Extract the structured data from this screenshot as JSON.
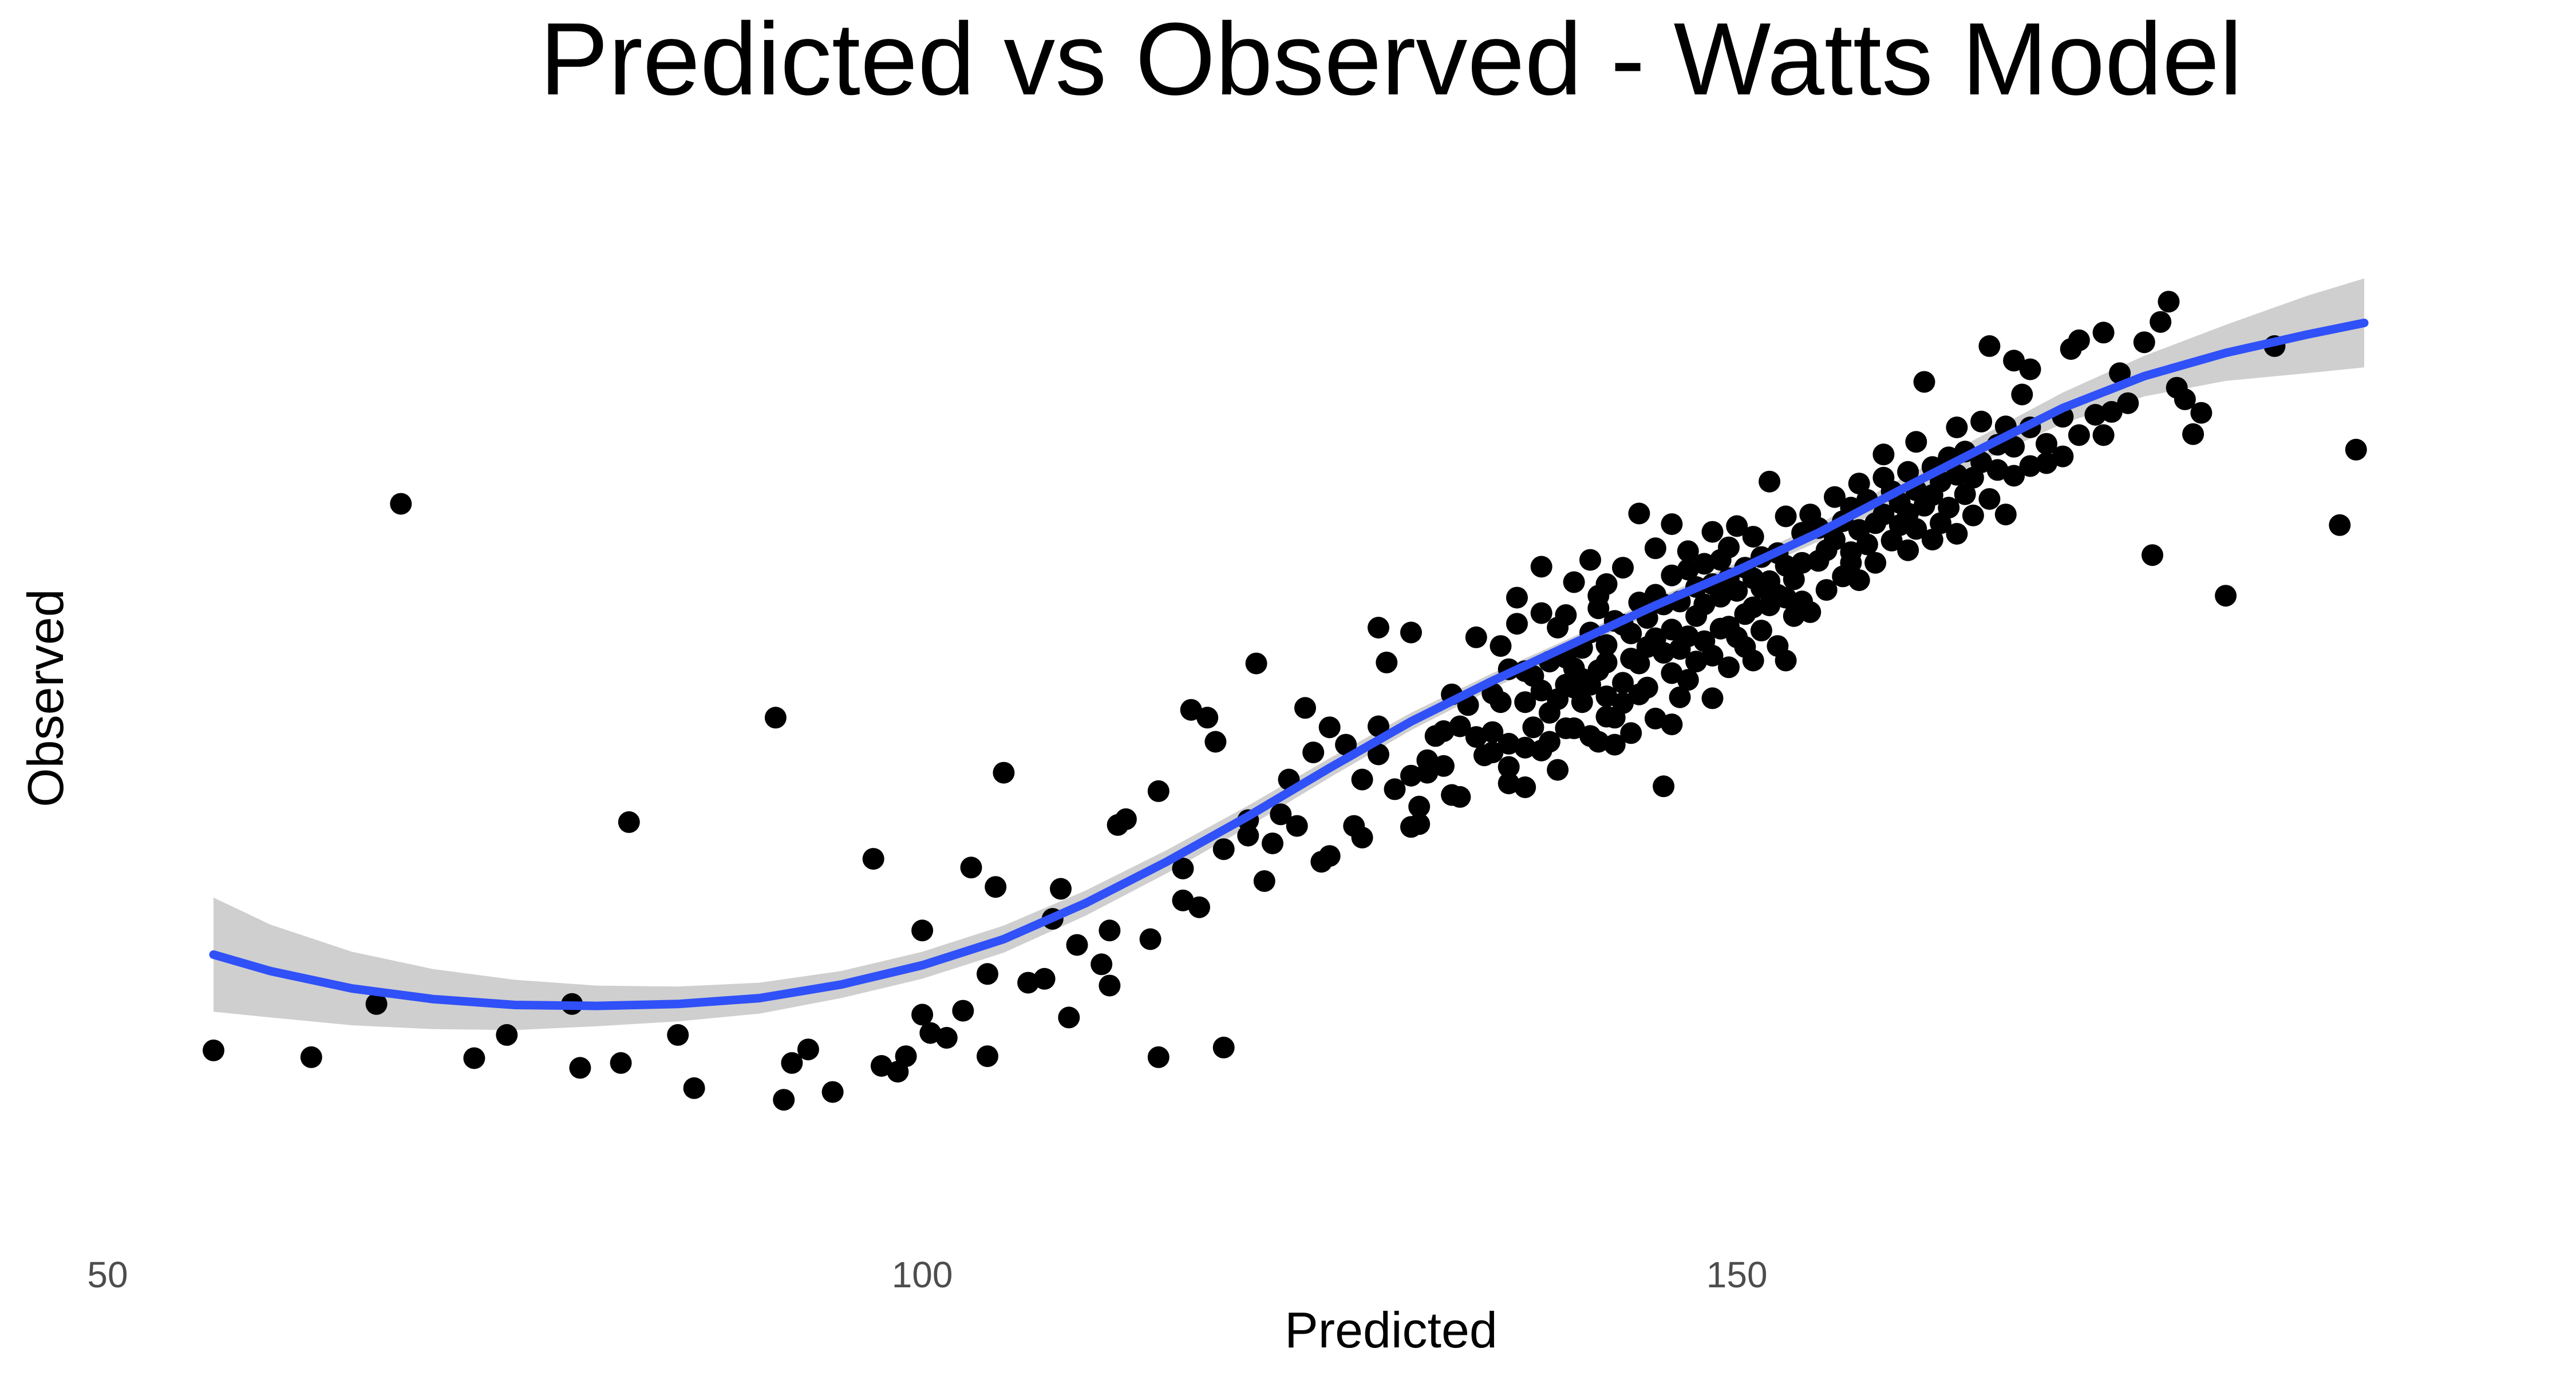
{
  "chart_data": {
    "type": "scatter",
    "title": "Predicted vs Observed - Watts Model",
    "xlabel": "Predicted",
    "ylabel": "Observed",
    "xlim": [
      50,
      195
    ],
    "ylim": [
      -10,
      100
    ],
    "x_ticks": [
      50,
      100,
      150
    ],
    "y_ticks": [],
    "grid": false,
    "legend": "none",
    "colors": {
      "points": "#000000",
      "smooth_line": "#3050f8",
      "confidence_band": "#cccccc"
    },
    "points": [
      [
        56.5,
        6.8
      ],
      [
        62.5,
        6.1
      ],
      [
        68,
        63.3
      ],
      [
        66.5,
        11.6
      ],
      [
        72.5,
        6.0
      ],
      [
        74.5,
        8.4
      ],
      [
        78.5,
        11.6
      ],
      [
        79,
        5.0
      ],
      [
        81.5,
        5.5
      ],
      [
        82,
        30.4
      ],
      [
        85,
        8.4
      ],
      [
        86,
        2.9
      ],
      [
        91,
        41.2
      ],
      [
        91.5,
        1.7
      ],
      [
        92,
        5.5
      ],
      [
        93,
        6.9
      ],
      [
        94.5,
        2.5
      ],
      [
        97,
        26.6
      ],
      [
        97.5,
        5.2
      ],
      [
        98.5,
        4.6
      ],
      [
        99,
        6.2
      ],
      [
        100,
        19.2
      ],
      [
        100,
        10.5
      ],
      [
        100.5,
        8.6
      ],
      [
        101.5,
        8.1
      ],
      [
        102.5,
        10.9
      ],
      [
        103,
        25.7
      ],
      [
        104,
        6.2
      ],
      [
        104,
        14.7
      ],
      [
        104.5,
        23.7
      ],
      [
        105,
        35.5
      ],
      [
        106.5,
        13.8
      ],
      [
        107.5,
        14.2
      ],
      [
        108,
        20.4
      ],
      [
        108.5,
        23.5
      ],
      [
        109,
        10.2
      ],
      [
        109.5,
        17.7
      ],
      [
        111,
        15.7
      ],
      [
        111.5,
        13.5
      ],
      [
        111.5,
        19.2
      ],
      [
        112,
        30.1
      ],
      [
        112.5,
        30.7
      ],
      [
        114,
        18.3
      ],
      [
        114.5,
        33.6
      ],
      [
        114.5,
        6.1
      ],
      [
        116,
        22.3
      ],
      [
        116,
        25.6
      ],
      [
        116.5,
        42.0
      ],
      [
        117,
        21.6
      ],
      [
        117.5,
        41.2
      ],
      [
        118,
        38.7
      ],
      [
        118.5,
        7.1
      ],
      [
        118.5,
        27.6
      ],
      [
        120,
        29.0
      ],
      [
        120,
        30.6
      ],
      [
        120.5,
        46.8
      ],
      [
        121,
        24.3
      ],
      [
        121.5,
        28.2
      ],
      [
        122,
        31.2
      ],
      [
        122.5,
        34.8
      ],
      [
        123,
        30.0
      ],
      [
        123.5,
        42.2
      ],
      [
        124,
        37.6
      ],
      [
        124.5,
        26.3
      ],
      [
        125,
        40.2
      ],
      [
        125,
        26.9
      ],
      [
        126,
        38.4
      ],
      [
        126.5,
        30.0
      ],
      [
        127,
        28.8
      ],
      [
        127,
        34.8
      ],
      [
        128,
        37.4
      ],
      [
        128,
        40.3
      ],
      [
        128,
        50.5
      ],
      [
        128.5,
        46.9
      ],
      [
        129,
        33.8
      ],
      [
        130,
        35.2
      ],
      [
        130,
        29.9
      ],
      [
        130,
        50.0
      ],
      [
        130.5,
        30.2
      ],
      [
        130.5,
        32.0
      ],
      [
        131,
        35.5
      ],
      [
        131,
        36.8
      ],
      [
        131.5,
        39.3
      ],
      [
        132,
        36.2
      ],
      [
        132.5,
        33.2
      ],
      [
        132,
        39.8
      ],
      [
        132.5,
        43.6
      ],
      [
        133,
        33.0
      ],
      [
        133,
        40.3
      ],
      [
        133.5,
        42.5
      ],
      [
        134,
        49.5
      ],
      [
        134,
        39.2
      ],
      [
        134.5,
        37.3
      ],
      [
        135,
        37.6
      ],
      [
        135,
        39.7
      ],
      [
        135,
        43.7
      ],
      [
        135.5,
        42.8
      ],
      [
        135.5,
        48.6
      ],
      [
        136,
        34.4
      ],
      [
        136,
        36.1
      ],
      [
        136,
        38.5
      ],
      [
        136,
        46.2
      ],
      [
        136.5,
        50.9
      ],
      [
        136.5,
        53.6
      ],
      [
        137,
        34.0
      ],
      [
        137,
        38.1
      ],
      [
        137,
        42.8
      ],
      [
        137,
        46.0
      ],
      [
        137.5,
        45.5
      ],
      [
        137.5,
        40.2
      ],
      [
        138,
        37.8
      ],
      [
        138,
        44.0
      ],
      [
        138,
        52.0
      ],
      [
        138,
        56.8
      ],
      [
        138.5,
        38.7
      ],
      [
        138.5,
        41.7
      ],
      [
        138.5,
        47.0
      ],
      [
        139,
        35.8
      ],
      [
        139,
        43.1
      ],
      [
        139,
        50.5
      ],
      [
        139.5,
        40.1
      ],
      [
        139.5,
        44.6
      ],
      [
        139.5,
        47.4
      ],
      [
        139.5,
        51.8
      ],
      [
        140,
        40.1
      ],
      [
        140,
        44.3
      ],
      [
        140,
        46.3
      ],
      [
        140,
        55.2
      ],
      [
        140.5,
        42.8
      ],
      [
        140.5,
        45.2
      ],
      [
        140.5,
        48.4
      ],
      [
        141,
        39.3
      ],
      [
        141,
        44.6
      ],
      [
        141,
        50.0
      ],
      [
        141,
        57.5
      ],
      [
        141.5,
        38.7
      ],
      [
        141.5,
        46.1
      ],
      [
        141.5,
        52.5
      ],
      [
        141.5,
        53.8
      ],
      [
        142,
        41.3
      ],
      [
        142,
        43.4
      ],
      [
        142,
        46.9
      ],
      [
        142,
        48.7
      ],
      [
        142,
        55.0
      ],
      [
        142.5,
        38.4
      ],
      [
        142.5,
        41.2
      ],
      [
        142.5,
        51.2
      ],
      [
        143,
        42.7
      ],
      [
        143,
        44.8
      ],
      [
        143,
        50.8
      ],
      [
        143,
        56.7
      ],
      [
        143.5,
        39.6
      ],
      [
        143.5,
        47.3
      ],
      [
        143.5,
        49.9
      ],
      [
        144,
        43.6
      ],
      [
        144,
        46.8
      ],
      [
        144,
        53.1
      ],
      [
        144,
        62.3
      ],
      [
        144.5,
        48.5
      ],
      [
        144.5,
        51.5
      ],
      [
        144.5,
        44.3
      ],
      [
        145,
        41.1
      ],
      [
        145,
        49.4
      ],
      [
        145,
        53.9
      ],
      [
        145,
        58.7
      ],
      [
        145.5,
        47.9
      ],
      [
        145.5,
        52.9
      ],
      [
        145.5,
        34.1
      ],
      [
        146,
        40.5
      ],
      [
        146,
        45.8
      ],
      [
        146,
        50.3
      ],
      [
        146,
        55.9
      ],
      [
        146,
        61.2
      ],
      [
        146.5,
        43.3
      ],
      [
        146.5,
        48.3
      ],
      [
        146.5,
        53.2
      ],
      [
        147,
        45.1
      ],
      [
        147,
        49.6
      ],
      [
        147,
        56.5
      ],
      [
        147,
        58.4
      ],
      [
        147.5,
        47.0
      ],
      [
        147.5,
        51.7
      ],
      [
        147.5,
        54.7
      ],
      [
        148,
        49.1
      ],
      [
        148,
        52.9
      ],
      [
        148,
        57.1
      ],
      [
        148.5,
        43.2
      ],
      [
        148.5,
        47.6
      ],
      [
        148.5,
        55.0
      ],
      [
        148.5,
        60.4
      ],
      [
        149,
        50.4
      ],
      [
        149,
        53.7
      ],
      [
        149,
        57.5
      ],
      [
        149.5,
        46.4
      ],
      [
        149.5,
        50.6
      ],
      [
        149.5,
        55.6
      ],
      [
        149.5,
        58.8
      ],
      [
        150,
        49.5
      ],
      [
        150,
        54.3
      ],
      [
        150,
        61.0
      ],
      [
        150.5,
        48.5
      ],
      [
        150.5,
        51.9
      ],
      [
        150.5,
        56.7
      ],
      [
        151,
        47.1
      ],
      [
        151,
        52.6
      ],
      [
        151,
        55.6
      ],
      [
        151,
        59.9
      ],
      [
        151.5,
        50.2
      ],
      [
        151.5,
        54.6
      ],
      [
        151.5,
        57.8
      ],
      [
        152,
        52.8
      ],
      [
        152,
        55.3
      ],
      [
        152,
        65.6
      ],
      [
        152.5,
        48.6
      ],
      [
        152.5,
        53.9
      ],
      [
        152.5,
        58.2
      ],
      [
        153,
        47.1
      ],
      [
        153,
        53.6
      ],
      [
        153,
        56.9
      ],
      [
        153,
        62.0
      ],
      [
        153.5,
        51.7
      ],
      [
        153.5,
        55.5
      ],
      [
        154,
        53.2
      ],
      [
        154,
        57.2
      ],
      [
        154,
        60.3
      ],
      [
        154.5,
        52.1
      ],
      [
        154.5,
        62.2
      ],
      [
        155,
        57.4
      ],
      [
        155,
        60.8
      ],
      [
        155.5,
        54.4
      ],
      [
        155.5,
        58.5
      ],
      [
        156,
        59.6
      ],
      [
        156,
        64.0
      ],
      [
        156.5,
        55.8
      ],
      [
        156.5,
        61.5
      ],
      [
        157,
        58.3
      ],
      [
        157,
        62.9
      ],
      [
        157,
        57.2
      ],
      [
        157.5,
        55.4
      ],
      [
        157.5,
        60.6
      ],
      [
        157.5,
        65.4
      ],
      [
        158,
        59.1
      ],
      [
        158,
        63.7
      ],
      [
        158.5,
        57.2
      ],
      [
        158.5,
        61.3
      ],
      [
        159,
        62.2
      ],
      [
        159,
        66.0
      ],
      [
        159,
        68.4
      ],
      [
        159.5,
        59.5
      ],
      [
        159.5,
        64.6
      ],
      [
        160,
        61.1
      ],
      [
        160,
        63.4
      ],
      [
        160.5,
        58.5
      ],
      [
        160.5,
        62.3
      ],
      [
        160.5,
        66.6
      ],
      [
        161,
        60.7
      ],
      [
        161,
        64.7
      ],
      [
        161,
        69.7
      ],
      [
        161.5,
        63.1
      ],
      [
        161.5,
        75.9
      ],
      [
        162,
        59.6
      ],
      [
        162,
        64.2
      ],
      [
        162,
        67.1
      ],
      [
        162.5,
        61.3
      ],
      [
        162.5,
        65.6
      ],
      [
        163,
        62.9
      ],
      [
        163,
        68.1
      ],
      [
        163.5,
        60.2
      ],
      [
        163.5,
        66.3
      ],
      [
        163.5,
        71.2
      ],
      [
        164,
        64.3
      ],
      [
        164,
        68.7
      ],
      [
        164.5,
        62.1
      ],
      [
        164.5,
        66.0
      ],
      [
        165,
        67.6
      ],
      [
        165,
        71.8
      ],
      [
        165.5,
        63.8
      ],
      [
        165.5,
        79.6
      ],
      [
        166,
        66.8
      ],
      [
        166,
        69.4
      ],
      [
        166.5,
        62.2
      ],
      [
        166.5,
        71.3
      ],
      [
        167,
        66.2
      ],
      [
        167,
        69.2
      ],
      [
        167,
        78.1
      ],
      [
        167.5,
        74.6
      ],
      [
        168,
        67.2
      ],
      [
        168,
        71.2
      ],
      [
        168,
        77.2
      ],
      [
        169,
        67.5
      ],
      [
        169,
        69.5
      ],
      [
        170,
        68.2
      ],
      [
        170,
        72.3
      ],
      [
        170.5,
        79.3
      ],
      [
        171,
        70.4
      ],
      [
        171,
        80.2
      ],
      [
        172,
        72.5
      ],
      [
        172.5,
        81.0
      ],
      [
        172.5,
        70.4
      ],
      [
        173,
        72.8
      ],
      [
        173.5,
        76.8
      ],
      [
        174,
        73.7
      ],
      [
        175,
        80.0
      ],
      [
        175.5,
        58.0
      ],
      [
        176,
        82.1
      ],
      [
        176.5,
        84.2
      ],
      [
        177,
        75.3
      ],
      [
        177.5,
        74.1
      ],
      [
        178,
        70.5
      ],
      [
        178.5,
        72.7
      ],
      [
        180,
        53.8
      ],
      [
        183,
        79.6
      ],
      [
        187,
        61.1
      ],
      [
        188,
        68.9
      ]
    ],
    "smooth_line": [
      [
        56.5,
        16.7
      ],
      [
        60,
        15.0
      ],
      [
        65,
        13.2
      ],
      [
        70,
        12.1
      ],
      [
        75,
        11.5
      ],
      [
        80,
        11.4
      ],
      [
        85,
        11.6
      ],
      [
        90,
        12.2
      ],
      [
        95,
        13.6
      ],
      [
        100,
        15.6
      ],
      [
        105,
        18.3
      ],
      [
        110,
        22.0
      ],
      [
        115,
        26.3
      ],
      [
        120,
        31.0
      ],
      [
        125,
        36.0
      ],
      [
        130,
        40.8
      ],
      [
        135,
        45.0
      ],
      [
        140,
        48.9
      ],
      [
        145,
        52.8
      ],
      [
        150,
        56.4
      ],
      [
        155,
        60.3
      ],
      [
        160,
        64.7
      ],
      [
        165,
        69.0
      ],
      [
        170,
        73.2
      ],
      [
        175,
        76.5
      ],
      [
        180,
        78.9
      ],
      [
        185,
        80.8
      ],
      [
        188.5,
        82.0
      ]
    ],
    "band_upper": [
      [
        56.5,
        22.6
      ],
      [
        60,
        19.8
      ],
      [
        65,
        17.0
      ],
      [
        70,
        15.2
      ],
      [
        75,
        14.1
      ],
      [
        80,
        13.5
      ],
      [
        85,
        13.4
      ],
      [
        90,
        13.8
      ],
      [
        95,
        15.0
      ],
      [
        100,
        17.0
      ],
      [
        105,
        19.7
      ],
      [
        110,
        23.3
      ],
      [
        115,
        27.5
      ],
      [
        120,
        32.1
      ],
      [
        125,
        37.0
      ],
      [
        130,
        41.7
      ],
      [
        135,
        45.8
      ],
      [
        140,
        49.6
      ],
      [
        145,
        53.5
      ],
      [
        150,
        57.2
      ],
      [
        155,
        61.2
      ],
      [
        160,
        65.8
      ],
      [
        165,
        70.3
      ],
      [
        170,
        74.8
      ],
      [
        175,
        78.6
      ],
      [
        180,
        81.8
      ],
      [
        185,
        84.8
      ],
      [
        188.5,
        86.6
      ]
    ],
    "band_lower": [
      [
        56.5,
        10.8
      ],
      [
        60,
        10.2
      ],
      [
        65,
        9.4
      ],
      [
        70,
        9.0
      ],
      [
        75,
        8.9
      ],
      [
        80,
        9.3
      ],
      [
        85,
        9.8
      ],
      [
        90,
        10.6
      ],
      [
        95,
        12.2
      ],
      [
        100,
        14.2
      ],
      [
        105,
        16.9
      ],
      [
        110,
        20.7
      ],
      [
        115,
        25.1
      ],
      [
        120,
        29.9
      ],
      [
        125,
        35.0
      ],
      [
        130,
        39.9
      ],
      [
        135,
        44.2
      ],
      [
        140,
        48.2
      ],
      [
        145,
        52.1
      ],
      [
        150,
        55.6
      ],
      [
        155,
        59.4
      ],
      [
        160,
        63.6
      ],
      [
        165,
        67.7
      ],
      [
        170,
        71.6
      ],
      [
        175,
        74.4
      ],
      [
        180,
        76.0
      ],
      [
        185,
        76.8
      ],
      [
        188.5,
        77.4
      ]
    ]
  }
}
